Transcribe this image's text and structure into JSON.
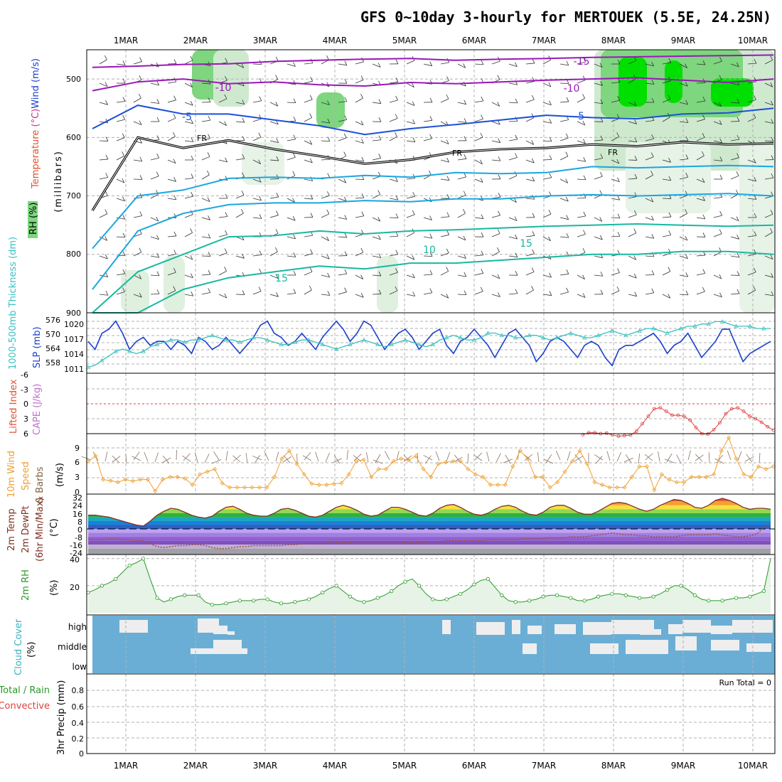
{
  "title": "GFS 0~10day 3-hourly for MERTOUEK (5.5E, 24.25N)",
  "date_labels": [
    "1MAR",
    "2MAR",
    "3MAR",
    "4MAR",
    "5MAR",
    "6MAR",
    "7MAR",
    "8MAR",
    "9MAR",
    "10MAR"
  ],
  "colors": {
    "rh_green": "#7ed67e",
    "rh_bright": "#00e000",
    "temp_purple": "#9a17b8",
    "temp_blue": "#1b4fd8",
    "temp_cyan": "#1aa6e0",
    "temp_teal": "#18b8a0",
    "temp_orange": "#e8a020",
    "slp_blue": "#1a3fcf",
    "thickness_cyan": "#3bc0c0",
    "lifted_red": "#e04040",
    "wind_orange": "#f0a030",
    "rh2m_green": "#2a9a2a",
    "cloud_blue": "#6aaed6",
    "cloud_white": "#eeeeee"
  },
  "chart_data": [
    {
      "type": "contour",
      "panel": "upper-air",
      "ylabel_parts": [
        {
          "text": "Temperature",
          "color": "#e05030"
        },
        {
          "text": " (°C)",
          "color": "#d03080"
        },
        {
          "text": "Wind (m/s)",
          "color": "#1a3fcf"
        }
      ],
      "ylabel2": "(millibars)",
      "rh_label": "RH (%)",
      "y_ticks": [
        "500",
        "600",
        "700",
        "800",
        "900"
      ],
      "ylim": [
        450,
        900
      ],
      "contour_labels": [
        {
          "text": "-15",
          "color": "#9a17b8"
        },
        {
          "text": "-10",
          "color": "#9a17b8"
        },
        {
          "text": "-10",
          "color": "#9a17b8"
        },
        {
          "text": "-5",
          "color": "#1b4fd8"
        },
        {
          "text": "-5",
          "color": "#1b4fd8"
        },
        {
          "text": "FR",
          "color": "#000000"
        },
        {
          "text": "FR",
          "color": "#000000"
        },
        {
          "text": "FR",
          "color": "#000000"
        },
        {
          "text": "10",
          "color": "#18b8a0"
        },
        {
          "text": "15",
          "color": "#18b8a0"
        },
        {
          "text": "15",
          "color": "#18b8a0"
        }
      ],
      "isotherms": [
        {
          "name": "-15",
          "color": "#9a17b8",
          "p": [
            480,
            478,
            475,
            474,
            470,
            468,
            466,
            465,
            468,
            466,
            465,
            463,
            462,
            461,
            460,
            459
          ]
        },
        {
          "name": "-10",
          "color": "#9a17b8",
          "p": [
            520,
            505,
            500,
            508,
            505,
            510,
            512,
            506,
            508,
            505,
            502,
            500,
            498,
            502,
            506,
            500
          ]
        },
        {
          "name": "-5",
          "color": "#1b4fd8",
          "p": [
            585,
            545,
            560,
            560,
            570,
            580,
            595,
            585,
            578,
            570,
            562,
            566,
            568,
            560,
            558,
            550
          ]
        },
        {
          "name": "FR",
          "color": "#000000",
          "p": [
            725,
            600,
            618,
            605,
            620,
            632,
            645,
            638,
            625,
            620,
            618,
            612,
            615,
            608,
            612,
            610
          ]
        },
        {
          "name": "0",
          "color": "#1aa6e0",
          "p": [
            790,
            700,
            690,
            670,
            668,
            670,
            665,
            668,
            660,
            662,
            660,
            650,
            652,
            650,
            648,
            650
          ]
        },
        {
          "name": "5",
          "color": "#1aa6e0",
          "p": [
            860,
            760,
            730,
            715,
            712,
            712,
            708,
            710,
            705,
            705,
            700,
            698,
            700,
            698,
            696,
            700
          ]
        },
        {
          "name": "10",
          "color": "#18b8a0",
          "p": [
            900,
            830,
            800,
            770,
            768,
            760,
            765,
            760,
            758,
            755,
            752,
            750,
            748,
            750,
            752,
            750
          ]
        },
        {
          "name": "15",
          "color": "#18b8a0",
          "p": [
            900,
            900,
            860,
            840,
            830,
            820,
            825,
            815,
            815,
            810,
            805,
            800,
            800,
            795,
            795,
            800
          ]
        }
      ]
    },
    {
      "type": "line",
      "panel": "slp-thickness",
      "ylabel_left": "1000-500mb Thickness (dm)",
      "ylabel_right": "SLP (mb)",
      "left_ticks": [
        "576",
        "570",
        "564",
        "558"
      ],
      "right_ticks": [
        "1020",
        "1017",
        "1014",
        "1011"
      ],
      "series": [
        {
          "name": "SLP (mb)",
          "color": "#1a3fcf",
          "ylim": [
            1010,
            1023
          ],
          "values": [
            1017,
            1015,
            1019,
            1020,
            1022,
            1019,
            1015,
            1017,
            1018,
            1016,
            1017,
            1017,
            1015,
            1017,
            1016,
            1014,
            1018,
            1017,
            1015,
            1016,
            1018,
            1016,
            1014,
            1016,
            1018,
            1021,
            1022,
            1019,
            1018,
            1016,
            1017,
            1019,
            1017,
            1015,
            1018,
            1020,
            1022,
            1020,
            1017,
            1019,
            1022,
            1021,
            1018,
            1015,
            1017,
            1019,
            1020,
            1018,
            1015,
            1017,
            1019,
            1020,
            1016,
            1014,
            1017,
            1018,
            1020,
            1018,
            1016,
            1013,
            1016,
            1019,
            1020,
            1018,
            1016,
            1012,
            1014,
            1017,
            1018,
            1017,
            1015,
            1013,
            1016,
            1017,
            1016,
            1013,
            1011,
            1015,
            1016,
            1016,
            1017,
            1018,
            1019,
            1017,
            1014,
            1016,
            1017,
            1019,
            1016,
            1013,
            1015,
            1017,
            1020,
            1020,
            1016,
            1012,
            1014,
            1015,
            1016,
            1017
          ]
        },
        {
          "name": "1000-500mb Thickness (dm)",
          "color": "#3bc0c0",
          "ylim": [
            555,
            578
          ],
          "values": [
            556,
            557,
            559,
            561,
            563,
            564,
            563,
            562,
            563,
            565,
            566,
            567,
            568,
            568,
            567,
            568,
            568,
            569,
            570,
            569,
            568,
            568,
            567,
            568,
            569,
            569,
            568,
            567,
            566,
            566,
            567,
            568,
            568,
            567,
            566,
            565,
            564,
            565,
            566,
            567,
            568,
            567,
            566,
            565,
            566,
            567,
            568,
            567,
            566,
            565,
            566,
            568,
            569,
            570,
            569,
            568,
            568,
            569,
            571,
            571,
            570,
            570,
            569,
            569,
            570,
            570,
            569,
            568,
            569,
            570,
            571,
            570,
            569,
            569,
            570,
            571,
            572,
            571,
            570,
            571,
            572,
            573,
            573,
            572,
            571,
            572,
            573,
            574,
            574,
            575,
            575,
            576,
            576,
            575,
            574,
            574,
            574,
            573,
            573,
            573
          ]
        }
      ]
    },
    {
      "type": "line",
      "panel": "cape-lifted",
      "ylabel_left": "Lifted Index",
      "ylabel_right": "CAPE (J/kg)",
      "y_ticks": [
        "-6",
        "-3",
        "0",
        "3",
        "6"
      ],
      "ylim": [
        -6,
        6
      ],
      "series": [
        {
          "name": "Lifted Index",
          "color": "#e04040",
          "x_start": 0.72,
          "values": [
            6.2,
            5.8,
            5.8,
            6.0,
            5.9,
            6.3,
            6.5,
            6.4,
            6.3,
            5.5,
            4.0,
            2.5,
            1.0,
            0.8,
            1.5,
            2.3,
            2.3,
            2.5,
            3.3,
            4.8,
            6.0,
            6.1,
            5.2,
            3.8,
            2.0,
            1.0,
            0.8,
            1.5,
            2.5,
            3.0,
            3.7,
            4.6,
            5.3
          ]
        }
      ]
    },
    {
      "type": "line",
      "panel": "wind10m",
      "ylabel": "10m Wind Speed & Barbs (m/s)",
      "y_ticks": [
        "0",
        "3",
        "6",
        "9"
      ],
      "ylim": [
        0,
        11
      ],
      "series": [
        {
          "name": "10m Wind Speed",
          "color": "#f0a030",
          "values": [
            6,
            7,
            2.5,
            2.3,
            2,
            2.5,
            2.2,
            2.5,
            2.5,
            0.3,
            2.5,
            3,
            3,
            2.7,
            1.5,
            3.5,
            4,
            4.5,
            1.8,
            1,
            1,
            1,
            1,
            1,
            1,
            3,
            6.5,
            8,
            5.5,
            3.5,
            1.7,
            1.5,
            1.5,
            1.7,
            1.8,
            3.5,
            6,
            6.3,
            3,
            4.5,
            4.5,
            6,
            6.5,
            6.2,
            7,
            4.5,
            3,
            5.5,
            5.8,
            6,
            6,
            4.5,
            3.5,
            3,
            1.5,
            1.5,
            1.5,
            5,
            8,
            6.5,
            3,
            3,
            1,
            2,
            4,
            6,
            8,
            5.5,
            2,
            1.5,
            1,
            1,
            1,
            3,
            5,
            5,
            0.5,
            3.5,
            2.5,
            2,
            2,
            3,
            3,
            3,
            3.5,
            8,
            10.5,
            6.5,
            3.5,
            3,
            5,
            4.5,
            5
          ]
        }
      ]
    },
    {
      "type": "area",
      "panel": "temp2m",
      "ylabel": "2m Temp 2m DewPt (6hr Min/Max) (°C)",
      "y_ticks": [
        "32",
        "24",
        "16",
        "8",
        "0",
        "-8",
        "-16",
        "-24"
      ],
      "ylim": [
        -26,
        34
      ],
      "series": [
        {
          "name": "2m Temp",
          "color": "#803020",
          "values": [
            14,
            14,
            13,
            12,
            10,
            8,
            6,
            4,
            3,
            8,
            14,
            18,
            21,
            20,
            17,
            14,
            12,
            11,
            13,
            18,
            22,
            23,
            20,
            16,
            14,
            13,
            13,
            16,
            20,
            21,
            19,
            16,
            13,
            12,
            14,
            18,
            22,
            24,
            22,
            19,
            15,
            13,
            14,
            18,
            22,
            22,
            20,
            17,
            14,
            13,
            16,
            21,
            24,
            25,
            22,
            18,
            15,
            14,
            16,
            20,
            23,
            24,
            22,
            18,
            15,
            14,
            17,
            22,
            24,
            24,
            21,
            17,
            15,
            15,
            18,
            22,
            26,
            27,
            26,
            23,
            20,
            18,
            20,
            24,
            27,
            30,
            29,
            26,
            22,
            21,
            24,
            29,
            31,
            29,
            26,
            22,
            20,
            21,
            21,
            20
          ]
        },
        {
          "name": "2m DewPt",
          "color": "#a05030",
          "values": [
            -10,
            -11,
            -11,
            -10,
            -10,
            -11,
            -11,
            -12,
            -12,
            -15,
            -18,
            -19,
            -18,
            -17,
            -17,
            -16,
            -16,
            -17,
            -19,
            -20,
            -20,
            -19,
            -18,
            -18,
            -17,
            -17,
            -17,
            -17,
            -17,
            -16,
            -16,
            -15,
            -15,
            -15,
            -15,
            -14,
            -14,
            -14,
            -14,
            -13,
            -13,
            -13,
            -13,
            -13,
            -13,
            -13,
            -14,
            -14,
            -14,
            -13,
            -13,
            -13,
            -12,
            -12,
            -12,
            -12,
            -12,
            -12,
            -11,
            -11,
            -11,
            -11,
            -11,
            -10,
            -10,
            -10,
            -10,
            -9,
            -9,
            -9,
            -8,
            -8,
            -8,
            -7,
            -6,
            -5,
            -4,
            -5,
            -6,
            -6,
            -7,
            -7,
            -8,
            -8,
            -8,
            -8,
            -7,
            -6,
            -6,
            -6,
            -6,
            -5,
            -6,
            -7,
            -8,
            -8,
            -7,
            -5,
            1,
            4
          ]
        }
      ]
    },
    {
      "type": "area",
      "panel": "rh2m",
      "ylabel": "2m RH (%)",
      "y_ticks": [
        "40",
        "20"
      ],
      "ylim": [
        0,
        42
      ],
      "series": [
        {
          "name": "2m RH",
          "color": "#2a9a2a",
          "values": [
            15,
            17,
            20,
            22,
            25,
            30,
            35,
            37,
            40,
            25,
            11,
            8,
            10,
            12,
            13,
            13,
            13,
            8,
            6,
            6,
            7,
            8,
            9,
            9,
            9,
            10,
            10,
            8,
            7,
            7,
            8,
            9,
            10,
            12,
            15,
            18,
            20,
            16,
            12,
            9,
            8,
            9,
            11,
            13,
            16,
            20,
            23,
            25,
            20,
            14,
            10,
            9,
            10,
            12,
            14,
            17,
            21,
            24,
            25,
            19,
            13,
            9,
            8,
            8,
            9,
            10,
            12,
            13,
            13,
            12,
            11,
            9,
            9,
            10,
            12,
            13,
            14,
            14,
            13,
            12,
            11,
            11,
            12,
            14,
            17,
            20,
            20,
            17,
            13,
            10,
            9,
            9,
            9,
            10,
            11,
            11,
            12,
            14,
            16,
            40
          ]
        }
      ]
    },
    {
      "type": "heatmap",
      "panel": "cloud-cover",
      "ylabel": "Cloud Cover (%)",
      "row_labels": [
        "high",
        "middle",
        "low"
      ]
    },
    {
      "type": "bar",
      "panel": "precip",
      "ylabel": "Total / Rain Convective 3hr Precip (mm)",
      "ylabel_parts": [
        {
          "text": "Total / Rain",
          "color": "#2a9a2a"
        },
        {
          "text": "Convective",
          "color": "#e04040"
        },
        {
          "text": "3hr Precip (mm)",
          "color": "#000000"
        }
      ],
      "y_ticks": [
        "0.8",
        "0.6",
        "0.4",
        "0.2",
        "0"
      ],
      "ylim": [
        0,
        0.9
      ],
      "run_total": "Run Total = 0",
      "values": []
    }
  ]
}
